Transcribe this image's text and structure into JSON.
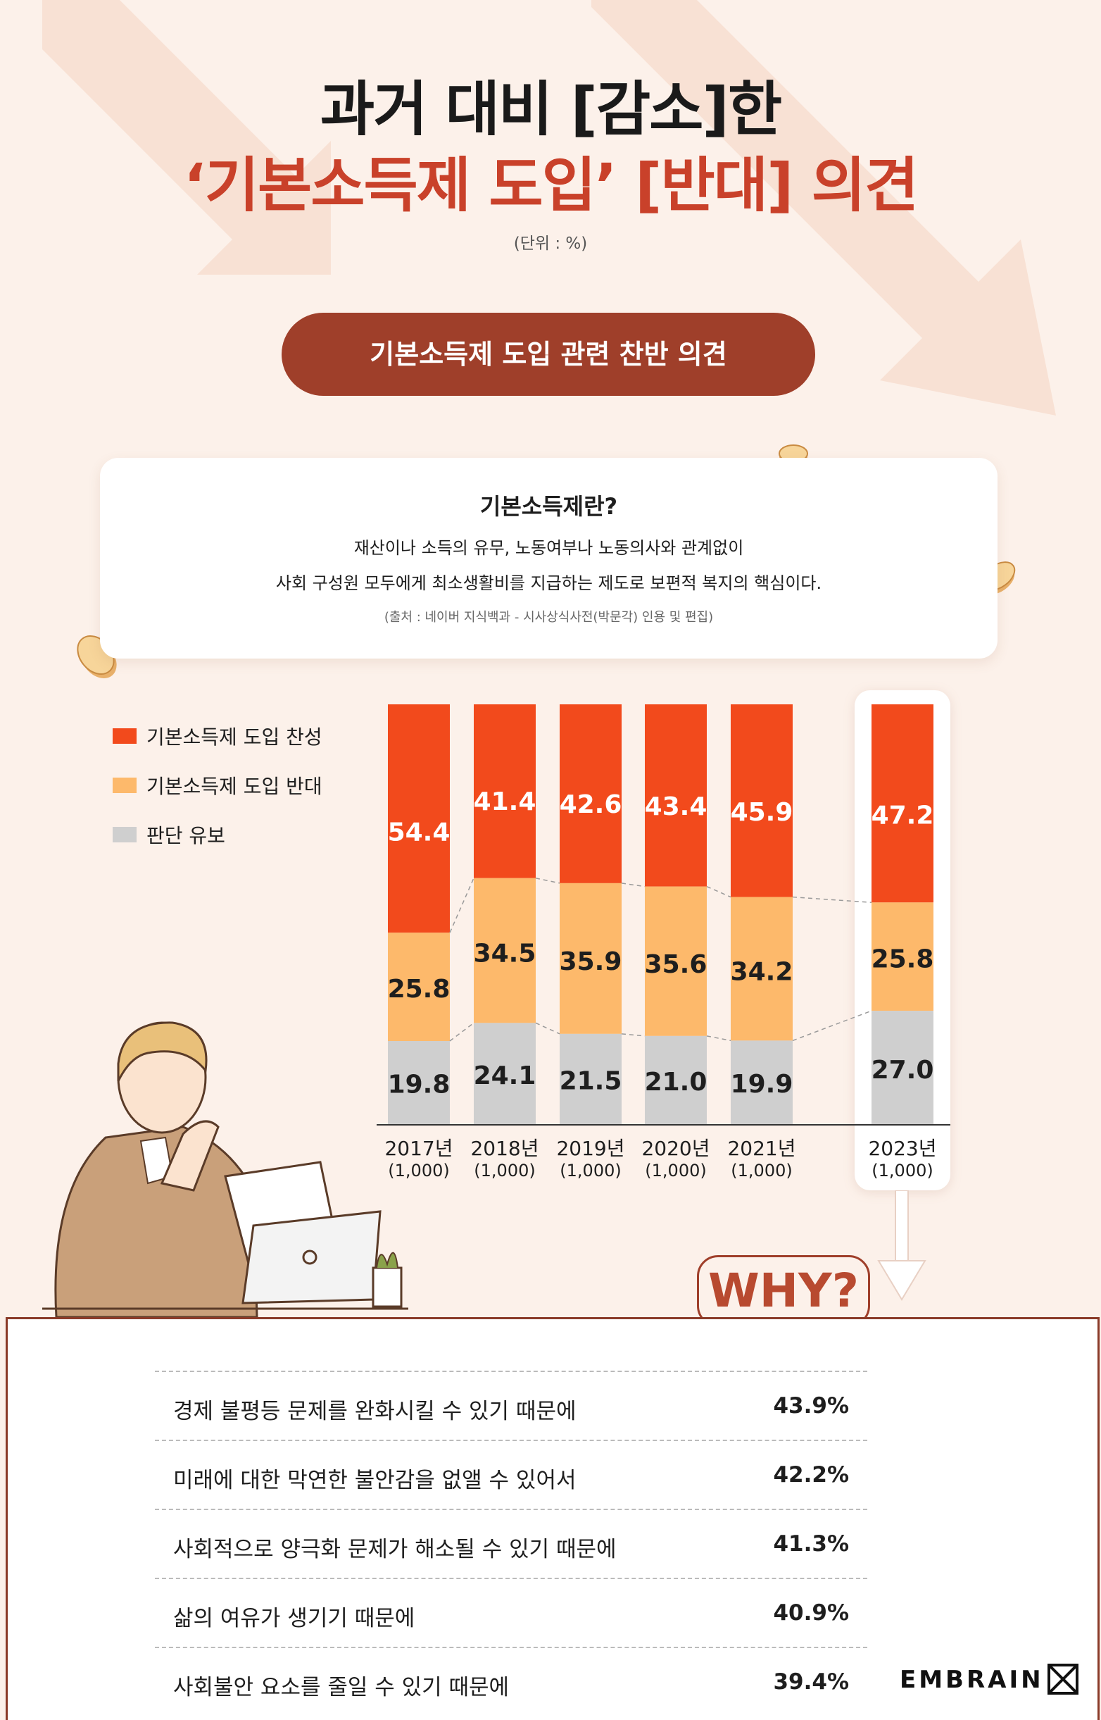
{
  "title": {
    "line1": "과거 대비 [감소]한",
    "line2": "‘기본소득제 도입’ [반대] 의견",
    "unit": "(단위 : %)"
  },
  "section_label": "기본소득제 도입 관련 찬반 의견",
  "definition": {
    "title": "기본소득제란?",
    "line1": "재산이나 소득의 유무, 노동여부나 노동의사와 관계없이",
    "line2": "사회 구성원 모두에게 최소생활비를 지급하는 제도로 보편적 복지의 핵심이다.",
    "source": "(출처 : 네이버 지식백과  -  시사상식사전(박문각) 인용 및 편집)"
  },
  "colors": {
    "favor": "#f24a1c",
    "oppose": "#fdb96b",
    "undecided": "#cfcfcf",
    "accent": "#9f3f2a"
  },
  "chart_data": {
    "type": "bar",
    "stacked": true,
    "categories": [
      "2017년",
      "2018년",
      "2019년",
      "2020년",
      "2021년",
      "2023년"
    ],
    "sample_sizes": [
      "(1,000)",
      "(1,000)",
      "(1,000)",
      "(1,000)",
      "(1,000)",
      "(1,000)"
    ],
    "series": [
      {
        "name": "기본소득제 도입 찬성",
        "values": [
          54.4,
          41.4,
          42.6,
          43.4,
          45.9,
          47.2
        ]
      },
      {
        "name": "기본소득제 도입 반대",
        "values": [
          25.8,
          34.5,
          35.9,
          35.6,
          34.2,
          25.8
        ]
      },
      {
        "name": "판단 유보",
        "values": [
          19.8,
          24.1,
          21.5,
          21.0,
          19.9,
          27.0
        ]
      }
    ],
    "value_labels": [
      [
        "54.4",
        "41.4",
        "42.6",
        "43.4",
        "45.9",
        "47.2"
      ],
      [
        "25.8",
        "34.5",
        "35.9",
        "35.6",
        "34.2",
        "25.8"
      ],
      [
        "19.8",
        "24.1",
        "21.5",
        "21.0",
        "19.9",
        "27.0"
      ]
    ],
    "ylim": [
      0,
      100
    ],
    "legend_position": "left",
    "highlight_category": "2023년"
  },
  "why_label": "WHY?",
  "reasons": [
    {
      "label": "경제 불평등 문제를 완화시킬 수 있기 때문에",
      "value": "43.9%"
    },
    {
      "label": "미래에 대한 막연한 불안감을 없앨 수 있어서",
      "value": "42.2%"
    },
    {
      "label": "사회적으로 양극화 문제가 해소될 수 있기 때문에",
      "value": "41.3%"
    },
    {
      "label": "삶의 여유가 생기기 때문에",
      "value": "40.9%"
    },
    {
      "label": "사회불안 요소를 줄일 수 있기 때문에",
      "value": "39.4%"
    }
  ],
  "brand": "EMBRAIN"
}
